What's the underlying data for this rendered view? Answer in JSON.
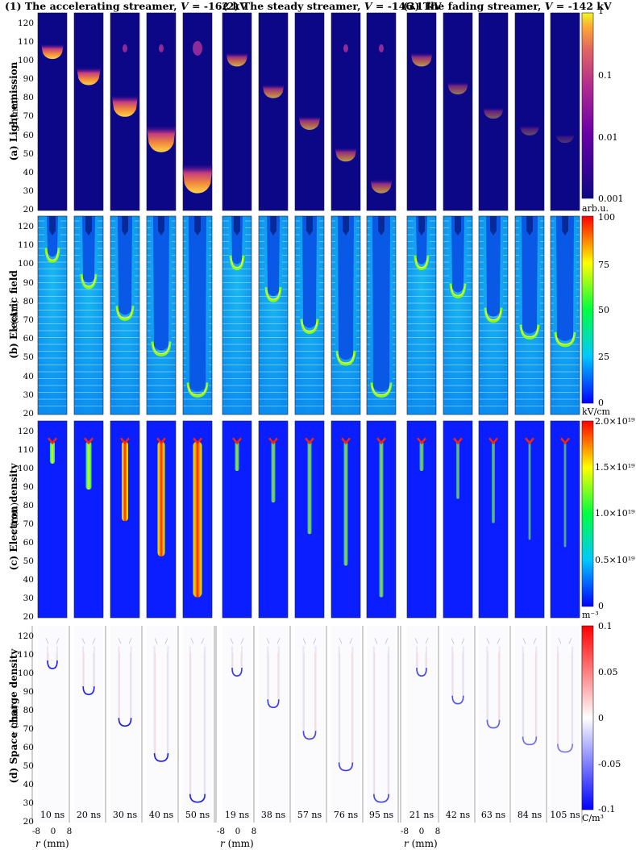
{
  "column_headings": [
    {
      "prefix": "(1) The accelerating streamer, ",
      "var": "V",
      "value": " = -162 kV"
    },
    {
      "prefix": "(2) The steady streamer, ",
      "var": "V",
      "value": " = -146.1 kV"
    },
    {
      "prefix": "(3) The fading streamer, ",
      "var": "V",
      "value": " = -142 kV"
    }
  ],
  "row_labels": [
    "(a) Light emission",
    "(b) Electric field",
    "(c) Electron density",
    "(d) Space charge density"
  ],
  "axes": {
    "z_label_var": "z",
    "z_label_unit": " (mm)",
    "r_label_var": "r",
    "r_label_unit": " (mm)",
    "z_ticks": [
      "120",
      "110",
      "100",
      "90",
      "80",
      "70",
      "60",
      "50",
      "40",
      "30",
      "20"
    ],
    "r_ticks": [
      "-8",
      "0",
      "8"
    ]
  },
  "times": [
    "10 ns",
    "20 ns",
    "30 ns",
    "40 ns",
    "50 ns",
    "19 ns",
    "38 ns",
    "57 ns",
    "76 ns",
    "95 ns",
    "21 ns",
    "42 ns",
    "63 ns",
    "84 ns",
    "105 ns"
  ],
  "streamer_heads_mm": [
    103,
    89,
    72,
    53,
    31,
    99,
    82,
    65,
    48,
    31,
    99,
    84,
    71,
    62,
    58
  ],
  "colorbars": [
    {
      "ticks": [
        "1",
        "0.1",
        "0.01",
        "0.001"
      ],
      "unit": "arb.u."
    },
    {
      "ticks": [
        "100",
        "75",
        "50",
        "25",
        "0"
      ],
      "unit": "kV/cm"
    },
    {
      "ticks": [
        "2.0×10¹⁹",
        "1.5×10¹⁹",
        "1.0×10¹⁹",
        "0.5×10¹⁹",
        "0"
      ],
      "unit": "m⁻³"
    },
    {
      "ticks": [
        "0.1",
        "0.05",
        "0",
        "-0.05",
        "-0.1"
      ],
      "unit": "C/m³"
    }
  ]
}
